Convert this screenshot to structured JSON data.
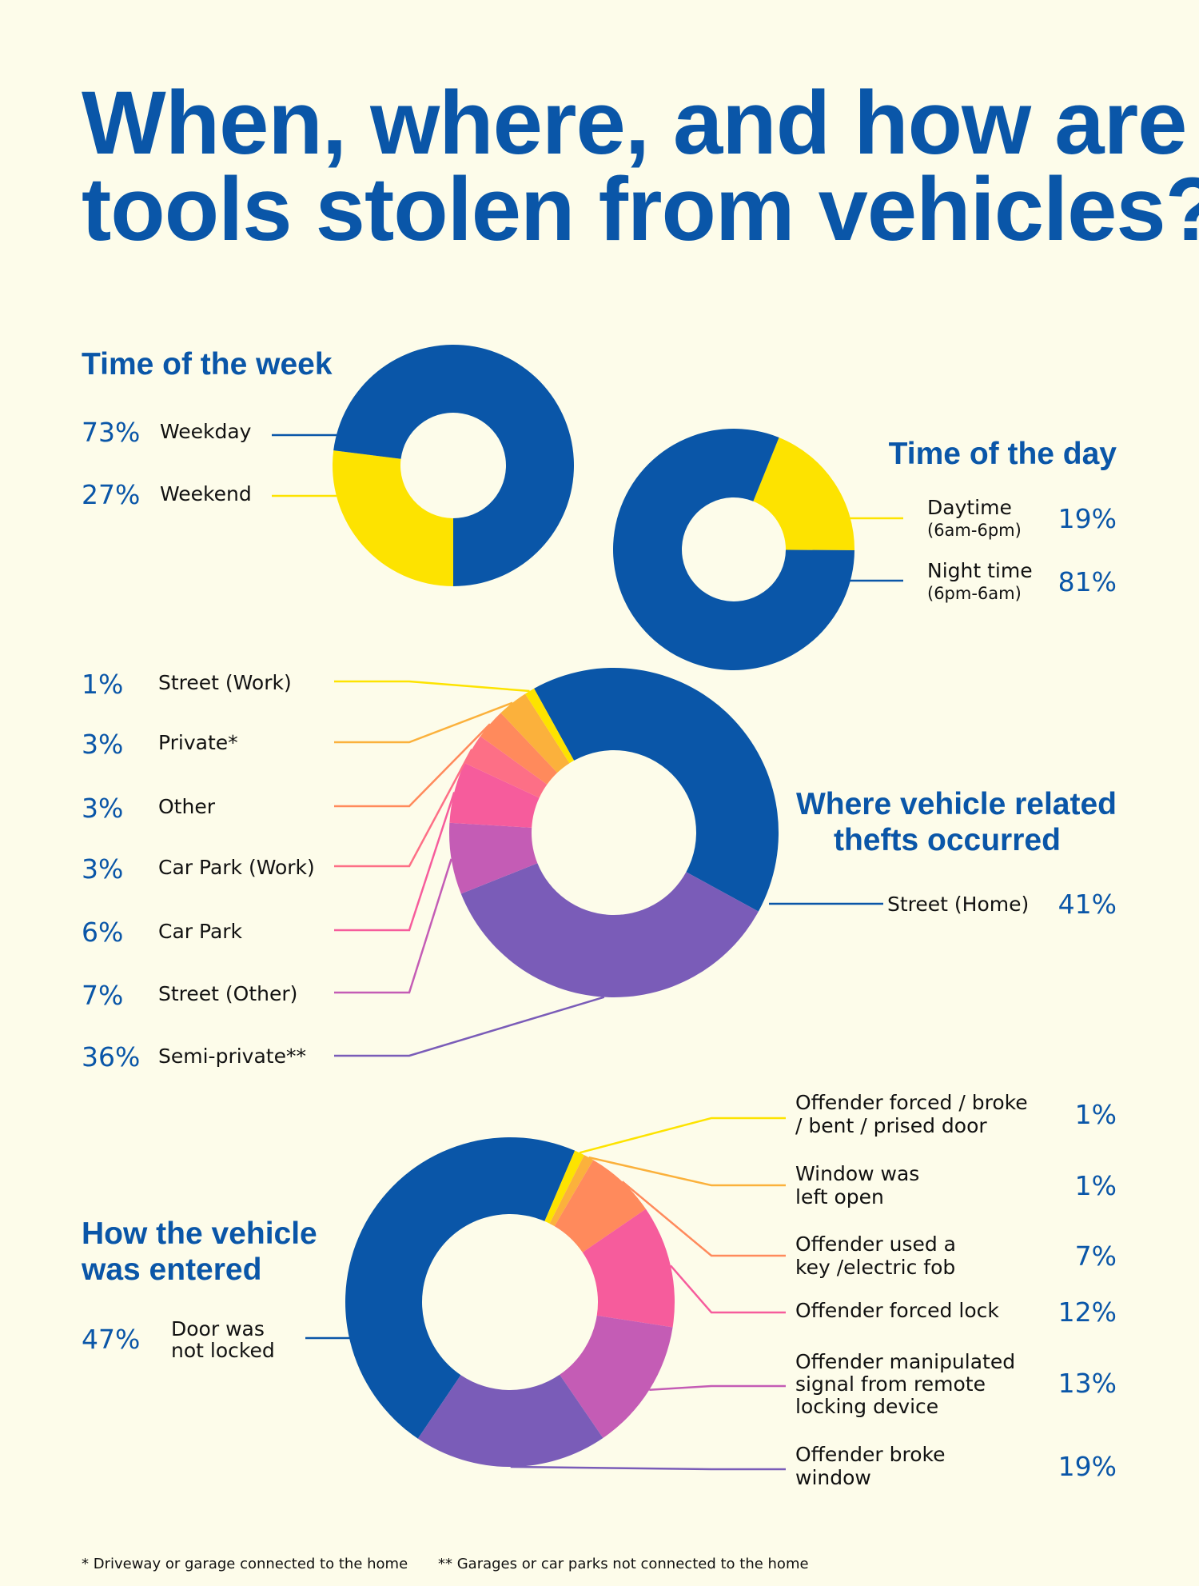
{
  "title_lines": [
    "When, where, and how are",
    "tools stolen from vehicles?"
  ],
  "colors": {
    "blue": "#0a56a8",
    "yellow": "#fde300",
    "orange": "#fbb13c",
    "coral": "#ff8a5c",
    "salmon": "#fd6f86",
    "pink": "#f65c9c",
    "magenta": "#c45cb5",
    "purple": "#7a5cb8",
    "background": "#fdfcea"
  },
  "footnotes": [
    "* Driveway or garage connected to the home",
    "** Garages or car parks not connected to the home"
  ],
  "chart_data": [
    {
      "type": "pie",
      "title": "Time of the week",
      "slices": [
        {
          "label": "Weekday",
          "value": 73,
          "display": "73%",
          "color": "#0a56a8"
        },
        {
          "label": "Weekend",
          "value": 27,
          "display": "27%",
          "color": "#fde300"
        }
      ]
    },
    {
      "type": "pie",
      "title": "Time of the day",
      "slices": [
        {
          "label": "Daytime",
          "sublabel": "(6am-6pm)",
          "value": 19,
          "display": "19%",
          "color": "#fde300"
        },
        {
          "label": "Night time",
          "sublabel": "(6pm-6am)",
          "value": 81,
          "display": "81%",
          "color": "#0a56a8"
        }
      ]
    },
    {
      "type": "pie",
      "title_lines": [
        "Where vehicle related",
        "thefts occurred"
      ],
      "slices": [
        {
          "label": "Street (Home)",
          "value": 41,
          "display": "41%",
          "color": "#0a56a8"
        },
        {
          "label": "Semi-private**",
          "value": 36,
          "display": "36%",
          "color": "#7a5cb8"
        },
        {
          "label": "Street (Other)",
          "value": 7,
          "display": "7%",
          "color": "#c45cb5"
        },
        {
          "label": "Car Park",
          "value": 6,
          "display": "6%",
          "color": "#f65c9c"
        },
        {
          "label": "Car Park (Work)",
          "value": 3,
          "display": "3%",
          "color": "#fd6f86"
        },
        {
          "label": "Other",
          "value": 3,
          "display": "3%",
          "color": "#ff8a5c"
        },
        {
          "label": "Private*",
          "value": 3,
          "display": "3%",
          "color": "#fbb13c"
        },
        {
          "label": "Street (Work)",
          "value": 1,
          "display": "1%",
          "color": "#fde300"
        }
      ]
    },
    {
      "type": "pie",
      "title_lines": [
        "How the vehicle",
        "was entered"
      ],
      "slices": [
        {
          "label_lines": [
            "Door was",
            "not locked"
          ],
          "value": 47,
          "display": "47%",
          "color": "#0a56a8"
        },
        {
          "label_lines": [
            "Offender broke",
            "window"
          ],
          "value": 19,
          "display": "19%",
          "color": "#7a5cb8"
        },
        {
          "label_lines": [
            "Offender manipulated",
            "signal from remote",
            "locking device"
          ],
          "value": 13,
          "display": "13%",
          "color": "#c45cb5"
        },
        {
          "label_lines": [
            "Offender forced lock"
          ],
          "value": 12,
          "display": "12%",
          "color": "#f65c9c"
        },
        {
          "label_lines": [
            "Offender used a",
            "key /electric fob"
          ],
          "value": 7,
          "display": "7%",
          "color": "#ff8a5c"
        },
        {
          "label_lines": [
            "Window was",
            "left open"
          ],
          "value": 1,
          "display": "1%",
          "color": "#fbb13c"
        },
        {
          "label_lines": [
            "Offender forced / broke",
            "/ bent / prised door"
          ],
          "value": 1,
          "display": "1%",
          "color": "#fde300"
        }
      ]
    }
  ]
}
